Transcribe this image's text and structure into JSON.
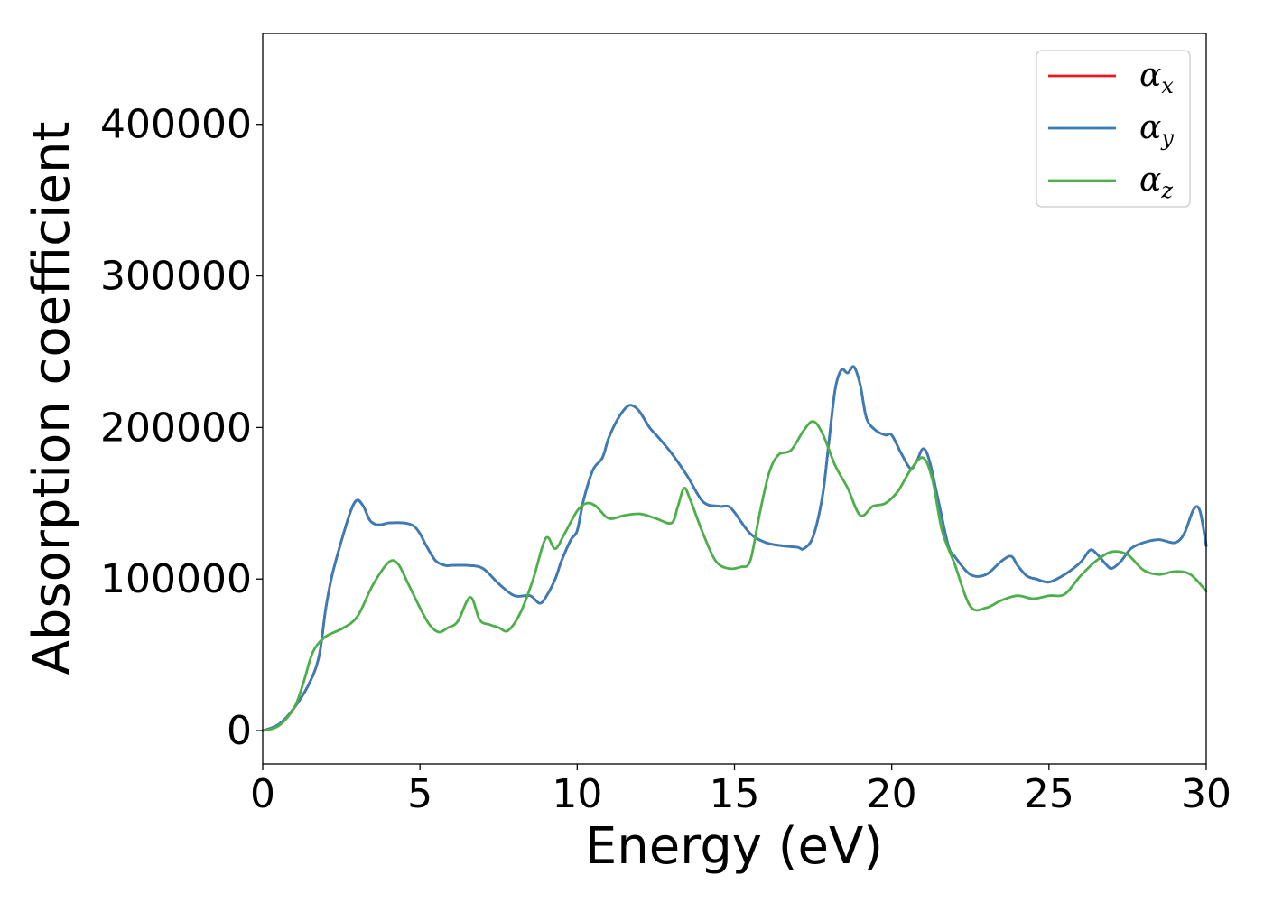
{
  "chart_data": {
    "type": "line",
    "xlabel": "Energy (eV)",
    "ylabel": "Absorption coefficient",
    "xlim": [
      0,
      30
    ],
    "ylim": [
      -22000,
      460000
    ],
    "xticks": [
      0,
      5,
      10,
      15,
      20,
      25,
      30
    ],
    "yticks": [
      0,
      100000,
      200000,
      300000,
      400000
    ],
    "grid": false,
    "legend_position": "top-right",
    "series": [
      {
        "name": "α",
        "subscript": "x",
        "color": "#e41a1c",
        "x": [
          0,
          0.5,
          1,
          1.5,
          1.8,
          2,
          2.2,
          2.5,
          2.8,
          3,
          3.2,
          3.4,
          3.6,
          3.8,
          4,
          4.5,
          4.8,
          5,
          5.2,
          5.5,
          5.8,
          6,
          6.5,
          7,
          7.5,
          8,
          8.5,
          8.8,
          9,
          9.3,
          9.5,
          9.8,
          10,
          10.2,
          10.5,
          10.8,
          11,
          11.3,
          11.6,
          11.8,
          12,
          12.3,
          12.6,
          13,
          13.5,
          14,
          14.5,
          14.8,
          15,
          15.5,
          16,
          16.5,
          17,
          17.2,
          17.5,
          17.8,
          18,
          18.2,
          18.4,
          18.6,
          18.8,
          19,
          19.2,
          19.5,
          19.8,
          20,
          20.3,
          20.6,
          20.8,
          21,
          21.2,
          21.5,
          21.8,
          22,
          22.5,
          23,
          23.5,
          23.8,
          24,
          24.3,
          24.6,
          25,
          25.5,
          26,
          26.3,
          26.5,
          26.8,
          27,
          27.3,
          27.6,
          28,
          28.5,
          29,
          29.3,
          29.6,
          29.8,
          30
        ],
        "y": [
          0,
          4000,
          15000,
          32000,
          50000,
          80000,
          102000,
          125000,
          145000,
          152000,
          148000,
          139000,
          136000,
          136000,
          137000,
          137000,
          135000,
          130000,
          122000,
          112000,
          109000,
          109000,
          109000,
          107000,
          97000,
          89000,
          89000,
          84000,
          88000,
          100000,
          112000,
          126000,
          132000,
          152000,
          172000,
          180000,
          193000,
          206000,
          214000,
          214000,
          210000,
          200000,
          193000,
          183000,
          168000,
          151000,
          148000,
          148000,
          144000,
          130000,
          124000,
          122000,
          121000,
          120000,
          128000,
          155000,
          190000,
          225000,
          238000,
          236000,
          240000,
          228000,
          206000,
          198000,
          195000,
          195000,
          183000,
          173000,
          178000,
          186000,
          178000,
          150000,
          122000,
          115000,
          103000,
          103000,
          112000,
          115000,
          109000,
          102000,
          100000,
          98000,
          103000,
          111000,
          119000,
          117000,
          110000,
          107000,
          112000,
          120000,
          124000,
          126000,
          124000,
          130000,
          146000,
          145000,
          122000
        ]
      },
      {
        "name": "α",
        "subscript": "y",
        "color": "#377eb8",
        "x": [
          0,
          0.5,
          1,
          1.5,
          1.8,
          2,
          2.2,
          2.5,
          2.8,
          3,
          3.2,
          3.4,
          3.6,
          3.8,
          4,
          4.5,
          4.8,
          5,
          5.2,
          5.5,
          5.8,
          6,
          6.5,
          7,
          7.5,
          8,
          8.5,
          8.8,
          9,
          9.3,
          9.5,
          9.8,
          10,
          10.2,
          10.5,
          10.8,
          11,
          11.3,
          11.6,
          11.8,
          12,
          12.3,
          12.6,
          13,
          13.5,
          14,
          14.5,
          14.8,
          15,
          15.5,
          16,
          16.5,
          17,
          17.2,
          17.5,
          17.8,
          18,
          18.2,
          18.4,
          18.6,
          18.8,
          19,
          19.2,
          19.5,
          19.8,
          20,
          20.3,
          20.6,
          20.8,
          21,
          21.2,
          21.5,
          21.8,
          22,
          22.5,
          23,
          23.5,
          23.8,
          24,
          24.3,
          24.6,
          25,
          25.5,
          26,
          26.3,
          26.5,
          26.8,
          27,
          27.3,
          27.6,
          28,
          28.5,
          29,
          29.3,
          29.6,
          29.8,
          30
        ],
        "y": [
          0,
          4000,
          15000,
          32000,
          50000,
          80000,
          102000,
          125000,
          145000,
          152000,
          148000,
          139000,
          136000,
          136000,
          137000,
          137000,
          135000,
          130000,
          122000,
          112000,
          109000,
          109000,
          109000,
          107000,
          97000,
          89000,
          89000,
          84000,
          88000,
          100000,
          112000,
          126000,
          132000,
          152000,
          172000,
          180000,
          193000,
          206000,
          214000,
          214000,
          210000,
          200000,
          193000,
          183000,
          168000,
          151000,
          148000,
          148000,
          144000,
          130000,
          124000,
          122000,
          121000,
          120000,
          128000,
          155000,
          190000,
          225000,
          238000,
          236000,
          240000,
          228000,
          206000,
          198000,
          195000,
          195000,
          183000,
          173000,
          178000,
          186000,
          178000,
          150000,
          122000,
          115000,
          103000,
          103000,
          112000,
          115000,
          109000,
          102000,
          100000,
          98000,
          103000,
          111000,
          119000,
          117000,
          110000,
          107000,
          112000,
          120000,
          124000,
          126000,
          124000,
          130000,
          146000,
          145000,
          122000
        ]
      },
      {
        "name": "α",
        "subscript": "z",
        "color": "#4daf4a",
        "x": [
          0,
          0.5,
          1,
          1.3,
          1.6,
          2,
          2.5,
          3,
          3.5,
          4,
          4.3,
          4.6,
          5,
          5.3,
          5.6,
          5.9,
          6.2,
          6.6,
          6.9,
          7.2,
          7.5,
          7.8,
          8.2,
          8.6,
          9,
          9.3,
          9.6,
          10,
          10.3,
          10.6,
          11,
          11.5,
          12,
          12.5,
          13,
          13.2,
          13.4,
          13.6,
          14,
          14.4,
          14.8,
          15.2,
          15.5,
          15.8,
          16.1,
          16.4,
          16.8,
          17.2,
          17.5,
          17.8,
          18.2,
          18.6,
          19,
          19.4,
          19.8,
          20.2,
          20.6,
          21,
          21.3,
          21.6,
          22,
          22.5,
          23,
          23.5,
          24,
          24.5,
          25,
          25.5,
          26,
          26.5,
          27,
          27.5,
          28,
          28.5,
          29,
          29.5,
          30
        ],
        "y": [
          0,
          3000,
          15000,
          32000,
          52000,
          62000,
          67000,
          75000,
          96000,
          111000,
          110000,
          98000,
          81000,
          70000,
          65000,
          68000,
          72000,
          88000,
          73000,
          70000,
          68000,
          66000,
          78000,
          100000,
          127000,
          120000,
          130000,
          145000,
          150000,
          148000,
          140000,
          142000,
          143000,
          140000,
          137000,
          148000,
          160000,
          152000,
          130000,
          112000,
          107000,
          108000,
          112000,
          143000,
          170000,
          182000,
          185000,
          198000,
          204000,
          196000,
          175000,
          160000,
          142000,
          148000,
          150000,
          158000,
          172000,
          180000,
          165000,
          132000,
          110000,
          82000,
          81000,
          86000,
          89000,
          87000,
          89000,
          90000,
          102000,
          112000,
          118000,
          116000,
          106000,
          103000,
          105000,
          103000,
          92000
        ]
      }
    ]
  }
}
